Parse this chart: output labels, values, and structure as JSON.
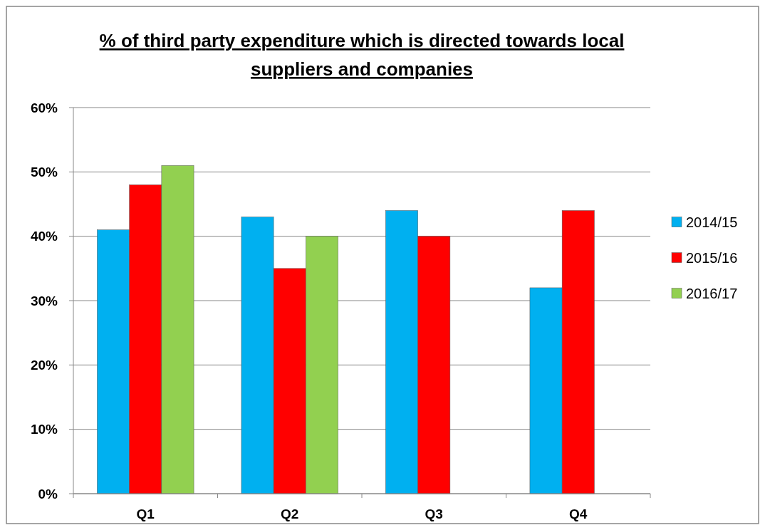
{
  "chart_data": {
    "type": "bar",
    "title": "% of third party expenditure which is directed towards local suppliers and companies",
    "categories": [
      "Q1",
      "Q2",
      "Q3",
      "Q4"
    ],
    "series": [
      {
        "name": "2014/15",
        "color": "#00b0f0",
        "values": [
          41,
          43,
          44,
          32
        ]
      },
      {
        "name": "2015/16",
        "color": "#ff0000",
        "values": [
          48,
          35,
          40,
          44
        ]
      },
      {
        "name": "2016/17",
        "color": "#92d050",
        "values": [
          51,
          40,
          null,
          null
        ]
      }
    ],
    "ylim": [
      0,
      60
    ],
    "yticks": [
      {
        "value": 0,
        "label": "0%"
      },
      {
        "value": 10,
        "label": "10%"
      },
      {
        "value": 20,
        "label": "20%"
      },
      {
        "value": 30,
        "label": "30%"
      },
      {
        "value": 40,
        "label": "40%"
      },
      {
        "value": 50,
        "label": "50%"
      },
      {
        "value": 60,
        "label": "60%"
      }
    ],
    "grid": "y",
    "legend": "right"
  }
}
